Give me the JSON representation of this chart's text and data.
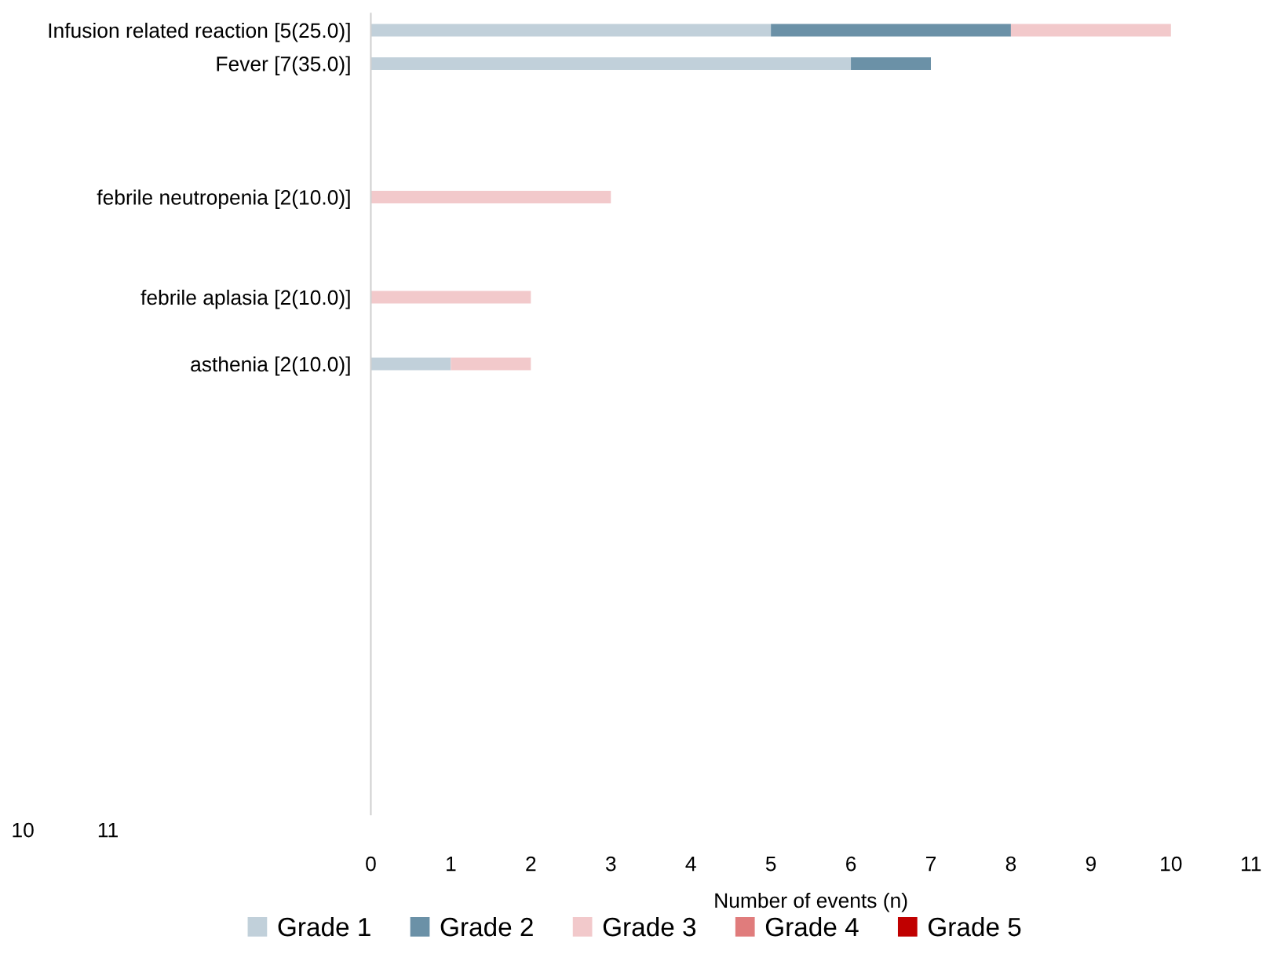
{
  "chart_data": {
    "type": "bar",
    "orientation": "horizontal",
    "stacked": true,
    "categories": [
      "Infusion related reaction [5(25.0)]",
      "Fever [7(35.0)]",
      null,
      null,
      null,
      "febrile neutropenia [2(10.0)]",
      null,
      null,
      "febrile aplasia [2(10.0)]",
      null,
      "asthenia [2(10.0)]",
      null,
      null,
      null,
      null,
      null,
      null,
      null,
      null,
      null,
      null,
      null,
      null,
      null
    ],
    "series": [
      {
        "name": "Grade 1",
        "color": "#c1d0da",
        "values": [
          5,
          6,
          null,
          null,
          null,
          null,
          null,
          null,
          null,
          null,
          1,
          null,
          null,
          null,
          null,
          null,
          null,
          null,
          null,
          null,
          null,
          null,
          null,
          null
        ]
      },
      {
        "name": "Grade 2",
        "color": "#6b91a7",
        "values": [
          3,
          1,
          null,
          null,
          null,
          null,
          null,
          null,
          null,
          null,
          null,
          null,
          null,
          null,
          null,
          null,
          null,
          null,
          null,
          null,
          null,
          null,
          null,
          null
        ]
      },
      {
        "name": "Grade 3",
        "color": "#f2c9cb",
        "values": [
          2,
          null,
          null,
          null,
          null,
          3,
          null,
          null,
          2,
          null,
          1,
          null,
          null,
          null,
          null,
          null,
          null,
          null,
          null,
          null,
          null,
          null,
          null,
          null
        ]
      },
      {
        "name": "Grade 4",
        "color": "#e07c7c",
        "values": [
          null,
          null,
          null,
          null,
          null,
          null,
          null,
          null,
          null,
          null,
          null,
          null,
          null,
          null,
          null,
          null,
          null,
          null,
          null,
          null,
          null,
          null,
          null,
          null
        ]
      },
      {
        "name": "Grade 5",
        "color": "#c00000",
        "values": [
          null,
          null,
          null,
          null,
          null,
          null,
          null,
          null,
          null,
          null,
          null,
          null,
          null,
          null,
          null,
          null,
          null,
          null,
          null,
          null,
          null,
          null,
          null,
          null
        ]
      }
    ],
    "xlabel": "Number of events (n)",
    "xlim": [
      0,
      11
    ],
    "xticks": [
      0,
      1,
      2,
      3,
      4,
      5,
      6,
      7,
      8,
      9,
      10,
      11
    ],
    "annotations": [
      "10",
      "11"
    ],
    "grid": false,
    "legend": "bottom"
  }
}
